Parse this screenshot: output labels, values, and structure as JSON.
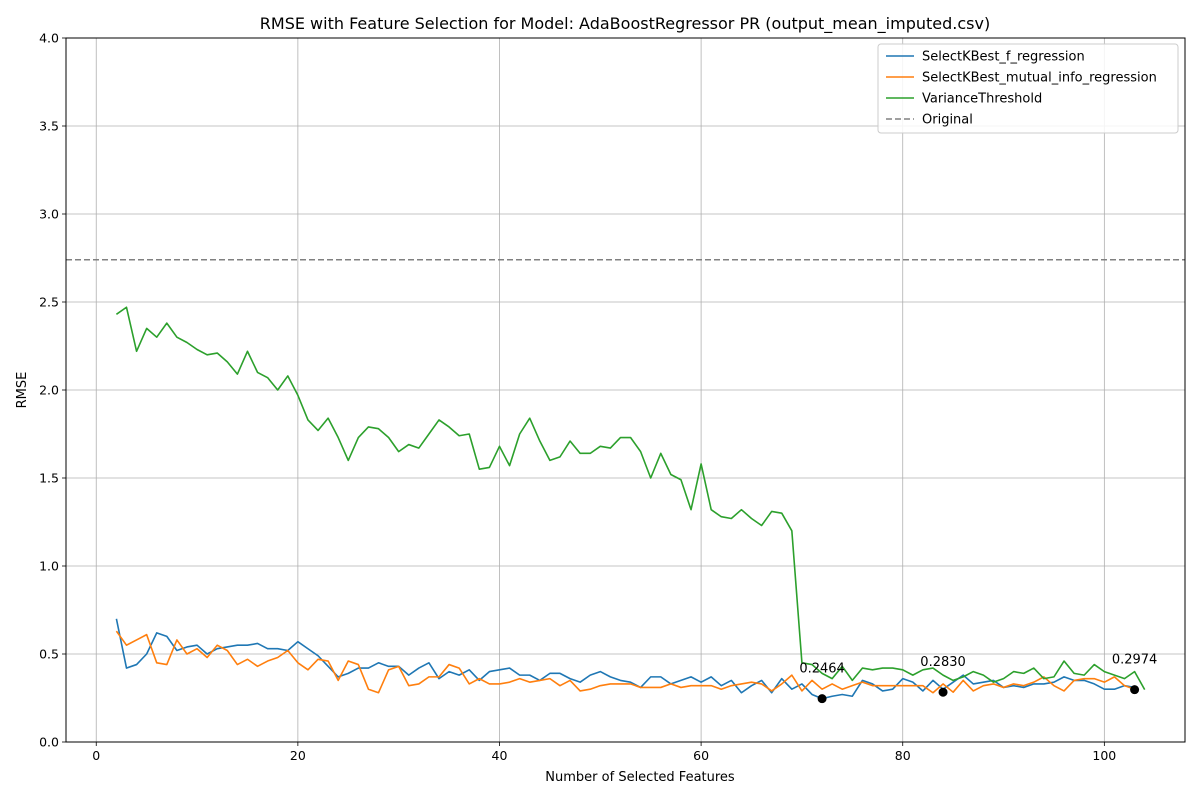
{
  "chart_data": {
    "type": "line",
    "title": "RMSE with Feature Selection for Model: AdaBoostRegressor PR (output_mean_imputed.csv)",
    "xlabel": "Number of Selected Features",
    "ylabel": "RMSE",
    "xlim": [
      -3,
      108
    ],
    "ylim": [
      0.0,
      4.0
    ],
    "x_ticks": [
      0,
      20,
      40,
      60,
      80,
      100
    ],
    "y_ticks": [
      0.0,
      0.5,
      1.0,
      1.5,
      2.0,
      2.5,
      3.0,
      3.5,
      4.0
    ],
    "x_tick_labels": [
      "0",
      "20",
      "40",
      "60",
      "80",
      "100"
    ],
    "y_tick_labels": [
      "0.0",
      "0.5",
      "1.0",
      "1.5",
      "2.0",
      "2.5",
      "3.0",
      "3.5",
      "4.0"
    ],
    "grid": true,
    "legend_position": "top-right",
    "x_start": 2,
    "series": [
      {
        "name": "SelectKBest_f_regression",
        "color": "#1f77b4",
        "values": [
          0.7,
          0.42,
          0.44,
          0.5,
          0.62,
          0.6,
          0.52,
          0.54,
          0.55,
          0.5,
          0.53,
          0.54,
          0.55,
          0.55,
          0.56,
          0.53,
          0.53,
          0.52,
          0.57,
          0.53,
          0.49,
          0.43,
          0.37,
          0.39,
          0.42,
          0.42,
          0.45,
          0.43,
          0.43,
          0.38,
          0.42,
          0.45,
          0.36,
          0.4,
          0.38,
          0.41,
          0.35,
          0.4,
          0.41,
          0.42,
          0.38,
          0.38,
          0.35,
          0.39,
          0.39,
          0.36,
          0.34,
          0.38,
          0.4,
          0.37,
          0.35,
          0.34,
          0.31,
          0.37,
          0.37,
          0.33,
          0.35,
          0.37,
          0.34,
          0.37,
          0.32,
          0.35,
          0.28,
          0.32,
          0.35,
          0.28,
          0.36,
          0.3,
          0.33,
          0.27,
          0.2464,
          0.26,
          0.27,
          0.26,
          0.35,
          0.33,
          0.29,
          0.3,
          0.36,
          0.34,
          0.29,
          0.35,
          0.3,
          0.34,
          0.38,
          0.33,
          0.34,
          0.35,
          0.31,
          0.32,
          0.31,
          0.33,
          0.33,
          0.34,
          0.37,
          0.35,
          0.35,
          0.33,
          0.3,
          0.3,
          0.32,
          0.31
        ]
      },
      {
        "name": "SelectKBest_mutual_info_regression",
        "color": "#ff7f0e",
        "values": [
          0.63,
          0.55,
          0.58,
          0.61,
          0.45,
          0.44,
          0.58,
          0.5,
          0.53,
          0.48,
          0.55,
          0.52,
          0.44,
          0.47,
          0.43,
          0.46,
          0.48,
          0.52,
          0.45,
          0.41,
          0.47,
          0.46,
          0.35,
          0.46,
          0.44,
          0.3,
          0.28,
          0.41,
          0.43,
          0.32,
          0.33,
          0.37,
          0.37,
          0.44,
          0.42,
          0.33,
          0.36,
          0.33,
          0.33,
          0.34,
          0.36,
          0.34,
          0.35,
          0.36,
          0.32,
          0.35,
          0.29,
          0.3,
          0.32,
          0.33,
          0.33,
          0.33,
          0.31,
          0.31,
          0.31,
          0.33,
          0.31,
          0.32,
          0.32,
          0.32,
          0.3,
          0.32,
          0.33,
          0.34,
          0.33,
          0.29,
          0.33,
          0.38,
          0.29,
          0.35,
          0.3,
          0.33,
          0.3,
          0.32,
          0.34,
          0.32,
          0.32,
          0.32,
          0.32,
          0.32,
          0.32,
          0.28,
          0.33,
          0.283,
          0.35,
          0.29,
          0.32,
          0.33,
          0.31,
          0.33,
          0.32,
          0.34,
          0.37,
          0.32,
          0.29,
          0.35,
          0.36,
          0.36,
          0.34,
          0.37,
          0.32,
          0.3
        ]
      },
      {
        "name": "VarianceThreshold",
        "color": "#2ca02c",
        "values": [
          2.43,
          2.47,
          2.22,
          2.35,
          2.3,
          2.38,
          2.3,
          2.27,
          2.23,
          2.2,
          2.21,
          2.16,
          2.09,
          2.22,
          2.1,
          2.07,
          2.0,
          2.08,
          1.97,
          1.83,
          1.77,
          1.84,
          1.73,
          1.6,
          1.73,
          1.79,
          1.78,
          1.73,
          1.65,
          1.69,
          1.67,
          1.75,
          1.83,
          1.79,
          1.74,
          1.75,
          1.55,
          1.56,
          1.68,
          1.57,
          1.75,
          1.84,
          1.71,
          1.6,
          1.62,
          1.71,
          1.64,
          1.64,
          1.68,
          1.67,
          1.73,
          1.73,
          1.65,
          1.5,
          1.64,
          1.52,
          1.49,
          1.32,
          1.58,
          1.32,
          1.28,
          1.27,
          1.32,
          1.27,
          1.23,
          1.31,
          1.3,
          1.2,
          0.45,
          0.44,
          0.39,
          0.36,
          0.43,
          0.35,
          0.42,
          0.41,
          0.42,
          0.42,
          0.41,
          0.38,
          0.41,
          0.42,
          0.38,
          0.35,
          0.37,
          0.4,
          0.38,
          0.34,
          0.36,
          0.4,
          0.39,
          0.42,
          0.36,
          0.37,
          0.46,
          0.39,
          0.38,
          0.44,
          0.4,
          0.38,
          0.36,
          0.4,
          0.2974
        ]
      },
      {
        "name": "Original",
        "color": "#808080",
        "dashed": true,
        "constant": 2.74
      }
    ],
    "annotations": [
      {
        "x": 72,
        "y": 0.2464,
        "label": "0.2464"
      },
      {
        "x": 84,
        "y": 0.283,
        "label": "0.2830"
      },
      {
        "x": 103,
        "y": 0.2974,
        "label": "0.2974"
      }
    ]
  }
}
